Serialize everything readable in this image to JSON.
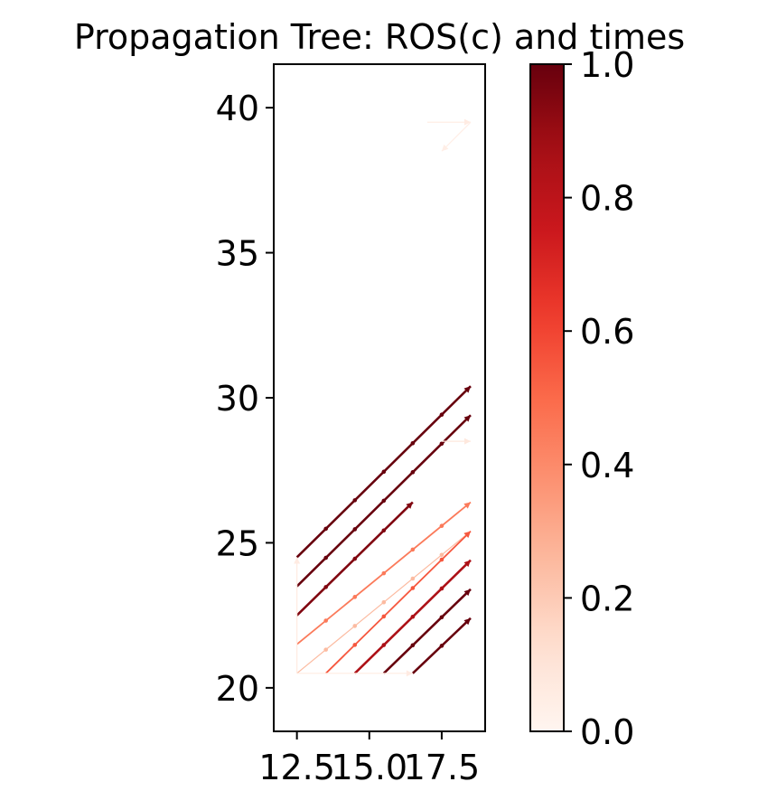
{
  "chart_data": {
    "type": "quiver",
    "title": "Propagation Tree: ROS(c) and times",
    "xlabel": "",
    "ylabel": "",
    "xlim": [
      11.7,
      19.0
    ],
    "ylim": [
      18.5,
      41.5
    ],
    "x_ticks": [
      12.5,
      15.0,
      17.5
    ],
    "x_tick_labels": [
      "12.5",
      "15.0",
      "17.5"
    ],
    "y_ticks": [
      20,
      25,
      30,
      35,
      40
    ],
    "y_tick_labels": [
      "20",
      "25",
      "30",
      "35",
      "40"
    ],
    "colormap": "Reds",
    "colorbar": {
      "range": [
        0.0,
        1.0
      ],
      "ticks": [
        0.0,
        0.2,
        0.4,
        0.6,
        0.8,
        1.0
      ],
      "tick_labels": [
        "0.0",
        "0.2",
        "0.4",
        "0.6",
        "0.8",
        "1.0"
      ]
    },
    "grid": false,
    "segments": [
      {
        "x0": 12.5,
        "y0": 24.5,
        "x1": 18.5,
        "y1": 30.4,
        "c": 1.0
      },
      {
        "x0": 12.5,
        "y0": 23.5,
        "x1": 18.5,
        "y1": 29.4,
        "c": 1.0
      },
      {
        "x0": 12.5,
        "y0": 22.5,
        "x1": 16.5,
        "y1": 26.4,
        "c": 0.95
      },
      {
        "x0": 12.5,
        "y0": 21.5,
        "x1": 18.5,
        "y1": 26.4,
        "c": 0.45
      },
      {
        "x0": 12.5,
        "y0": 20.5,
        "x1": 18.5,
        "y1": 25.4,
        "c": 0.25
      },
      {
        "x0": 13.5,
        "y0": 20.5,
        "x1": 18.5,
        "y1": 25.4,
        "c": 0.55
      },
      {
        "x0": 14.5,
        "y0": 20.5,
        "x1": 18.5,
        "y1": 24.4,
        "c": 0.85
      },
      {
        "x0": 15.5,
        "y0": 20.5,
        "x1": 18.5,
        "y1": 23.4,
        "c": 1.0
      },
      {
        "x0": 16.5,
        "y0": 20.5,
        "x1": 18.5,
        "y1": 22.4,
        "c": 1.0
      },
      {
        "x0": 12.5,
        "y0": 20.5,
        "x1": 16.5,
        "y1": 20.5,
        "c": 0.06
      },
      {
        "x0": 12.5,
        "y0": 20.5,
        "x1": 12.5,
        "y1": 24.5,
        "c": 0.06
      },
      {
        "x0": 17.5,
        "y0": 28.5,
        "x1": 18.5,
        "y1": 28.5,
        "c": 0.08
      },
      {
        "x0": 17.0,
        "y0": 39.5,
        "x1": 18.5,
        "y1": 39.5,
        "c": 0.06
      },
      {
        "x0": 18.5,
        "y0": 39.5,
        "x1": 17.5,
        "y1": 38.5,
        "c": 0.04
      }
    ]
  }
}
